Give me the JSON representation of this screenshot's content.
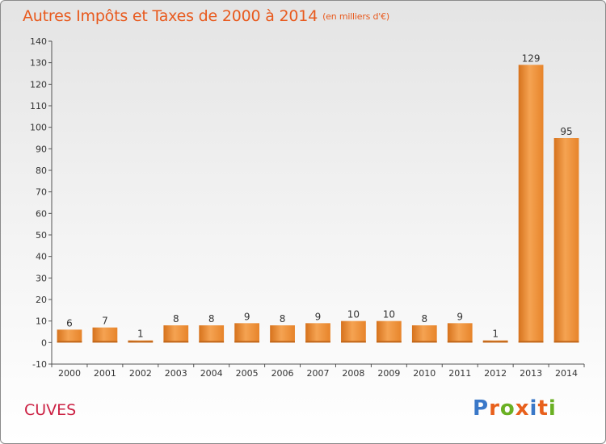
{
  "title": "Autres Impôts et Taxes de 2000 à 2014",
  "unit_label": "(en milliers d'€)",
  "commune": "CUVES",
  "logo": {
    "text": "Proxiti",
    "colors": [
      "#3a78c8",
      "#e8601c",
      "#6ab023",
      "#e8601c",
      "#3a78c8",
      "#e8601c",
      "#6ab023"
    ]
  },
  "colors": {
    "title": "#e85a1e",
    "commune": "#cc2244",
    "bar": "#f08a30"
  },
  "chart_data": {
    "type": "bar",
    "categories": [
      "2000",
      "2001",
      "2002",
      "2003",
      "2004",
      "2005",
      "2006",
      "2007",
      "2008",
      "2009",
      "2010",
      "2011",
      "2012",
      "2013",
      "2014"
    ],
    "values": [
      6,
      7,
      1,
      8,
      8,
      9,
      8,
      9,
      10,
      10,
      8,
      9,
      1,
      129,
      95
    ],
    "ylim": [
      -10,
      140
    ],
    "yticks": [
      -10,
      0,
      10,
      20,
      30,
      40,
      50,
      60,
      70,
      80,
      90,
      100,
      110,
      120,
      130,
      140
    ],
    "grid": false
  }
}
